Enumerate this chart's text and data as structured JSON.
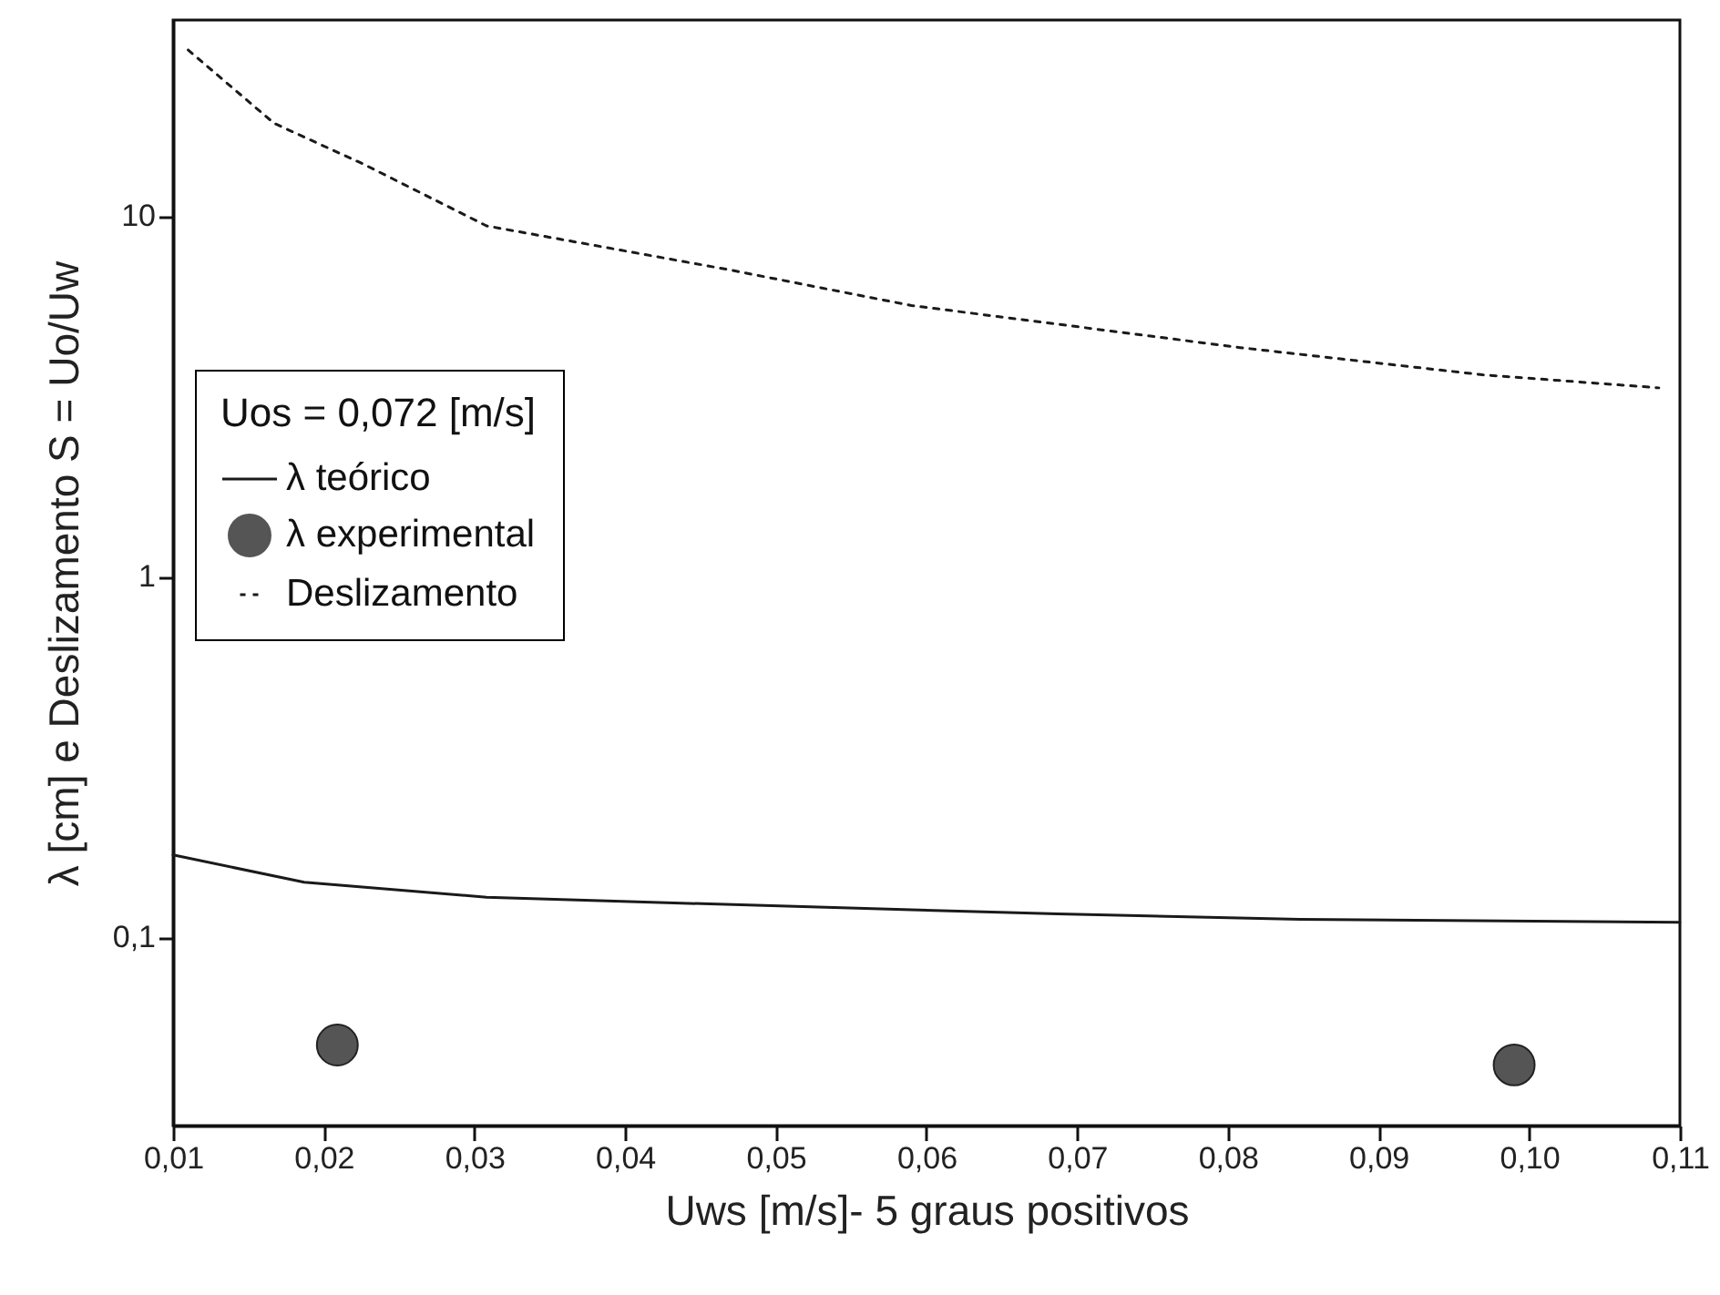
{
  "chart_data": {
    "type": "line",
    "xlabel": "Uws [m/s]- 5 graus positivos",
    "ylabel": "λ [cm] e Deslizamento S = Uo/Uw",
    "legend_title": "Uos = 0,072 [m/s]",
    "log": true,
    "grid": false,
    "legend": "left",
    "xlim": [
      0.01,
      0.11
    ],
    "ylim": [
      0.03,
      35
    ],
    "xticks": [
      {
        "value": 0.01,
        "label": "0,01"
      },
      {
        "value": 0.02,
        "label": "0,02"
      },
      {
        "value": 0.03,
        "label": "0,03"
      },
      {
        "value": 0.04,
        "label": "0,04"
      },
      {
        "value": 0.05,
        "label": "0,05"
      },
      {
        "value": 0.06,
        "label": "0,06"
      },
      {
        "value": 0.07,
        "label": "0,07"
      },
      {
        "value": 0.08,
        "label": "0,08"
      },
      {
        "value": 0.09,
        "label": "0,09"
      },
      {
        "value": 0.1,
        "label": "0,10"
      },
      {
        "value": 0.11,
        "label": "0,11"
      }
    ],
    "yticks": [
      {
        "value": 0.1,
        "label": "0,1"
      },
      1,
      10
    ],
    "series": [
      {
        "name": "λ teórico",
        "line_style": "solid",
        "color": "#1a1a1a",
        "x": [
          0.01,
          0.0187,
          0.0308,
          0.0388,
          0.059,
          0.0687,
          0.0848,
          0.11
        ],
        "values": [
          0.169,
          0.142,
          0.129,
          0.126,
          0.119,
          0.116,
          0.112,
          0.11
        ]
      },
      {
        "name": "λ experimental",
        "type": "scatter",
        "marker": "circle",
        "color": "#555555",
        "x": [
          0.0209,
          0.099
        ],
        "values": [
          0.0502,
          0.0442
        ]
      },
      {
        "name": "Deslizamento",
        "line_style": "dotted",
        "color": "#1a1a1a",
        "x": [
          0.011,
          0.0167,
          0.0227,
          0.0308,
          0.0469,
          0.059,
          0.0647,
          0.0808,
          0.0969,
          0.1086
        ],
        "values": [
          28.9,
          18.1,
          13.9,
          9.4,
          7.1,
          5.65,
          5.27,
          4.32,
          3.63,
          3.34
        ]
      }
    ]
  }
}
